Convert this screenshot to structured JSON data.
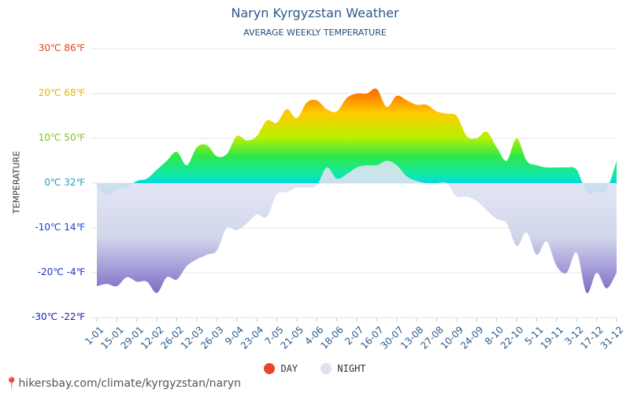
{
  "header": {
    "title": "Naryn Kyrgyzstan Weather",
    "subtitle": "AVERAGE WEEKLY TEMPERATURE"
  },
  "axis": {
    "y_title": "TEMPERATURE",
    "y_ticks": [
      {
        "label": "30℃ 86℉",
        "color": "#e0441b",
        "value": 30
      },
      {
        "label": "20℃ 68℉",
        "color": "#e8b400",
        "value": 20
      },
      {
        "label": "10℃ 50℉",
        "color": "#7cc41f",
        "value": 10
      },
      {
        "label": "0℃ 32℉",
        "color": "#1aa0c8",
        "value": 0
      },
      {
        "label": "-10℃ 14℉",
        "color": "#1a3fd0",
        "value": -10
      },
      {
        "label": "-20℃ -4℉",
        "color": "#1a2ec8",
        "value": -20
      },
      {
        "label": "-30℃ -22℉",
        "color": "#1a1ab8",
        "value": -30
      }
    ]
  },
  "legend": {
    "day_label": "DAY",
    "night_label": "NIGHT",
    "day_color": "#e8462a",
    "night_color": "#dde2f0"
  },
  "footer": {
    "source": "hikersbay.com/climate/kyrgyzstan/naryn",
    "pin_icon": "location-pin-icon"
  },
  "chart_data": {
    "type": "area",
    "title": "Naryn Kyrgyzstan Weather",
    "subtitle": "AVERAGE WEEKLY TEMPERATURE",
    "ylabel": "TEMPERATURE",
    "ylim": [
      -30,
      30
    ],
    "x_tick_labels": [
      "1-01",
      "15-01",
      "29-01",
      "12-02",
      "26-02",
      "12-03",
      "26-03",
      "9-04",
      "23-04",
      "7-05",
      "21-05",
      "4-06",
      "18-06",
      "2-07",
      "16-07",
      "30-07",
      "13-08",
      "27-08",
      "10-09",
      "24-09",
      "8-10",
      "22-10",
      "5-11",
      "19-11",
      "3-12",
      "17-12",
      "31-12"
    ],
    "series": [
      {
        "name": "DAY",
        "values": [
          -1,
          -2.5,
          -1.5,
          -1,
          0.5,
          1,
          3,
          5,
          7,
          4,
          8,
          8.5,
          6,
          6.5,
          10.5,
          9.5,
          10.5,
          14,
          13.5,
          16.5,
          14.5,
          18,
          18.5,
          16.5,
          16,
          19,
          20,
          20,
          21,
          17,
          19.5,
          18.5,
          17.5,
          17.5,
          16,
          15.5,
          15,
          10.5,
          10,
          11.5,
          8,
          5,
          10,
          5,
          4,
          3.5,
          3.5,
          3.5,
          3,
          -2,
          -2,
          -1.5,
          5
        ]
      },
      {
        "name": "NIGHT",
        "values": [
          -23,
          -22.5,
          -23,
          -21,
          -22,
          -22,
          -24.5,
          -21,
          -21.5,
          -18.5,
          -17,
          -16,
          -15,
          -10,
          -10.5,
          -9,
          -7,
          -7.5,
          -2.5,
          -2,
          -1,
          -1,
          -0.5,
          3.5,
          1,
          2,
          3.5,
          4,
          4,
          5,
          4,
          1.5,
          0.5,
          0,
          0,
          0,
          -3,
          -3,
          -4,
          -6,
          -8,
          -9,
          -14,
          -11,
          -16,
          -13,
          -18.5,
          -20,
          -15.5,
          -24.5,
          -20,
          -23.5,
          -20
        ]
      }
    ]
  }
}
